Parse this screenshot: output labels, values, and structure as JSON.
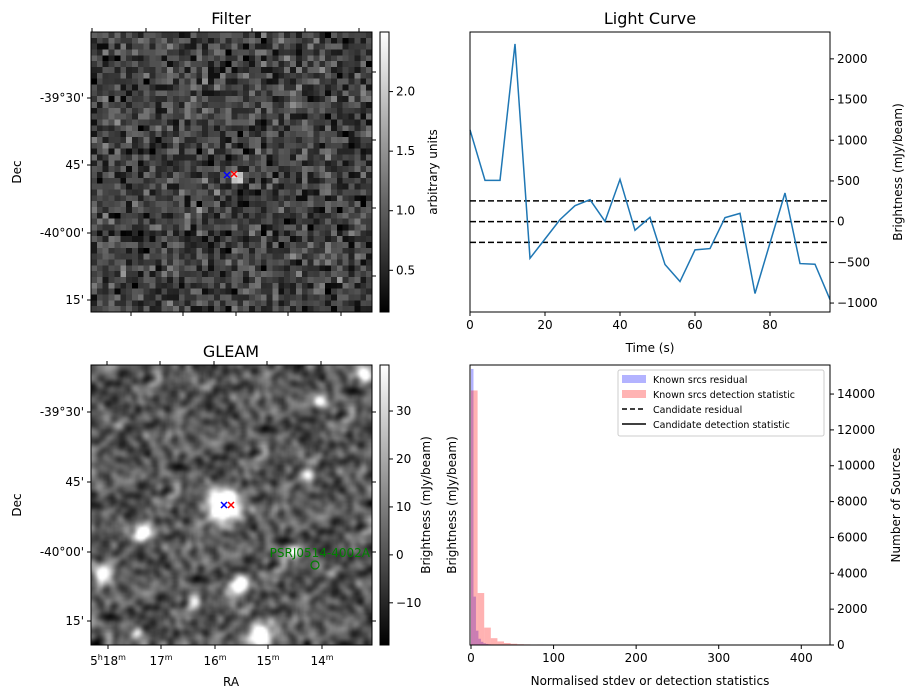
{
  "chart_data": [
    {
      "type": "heatmap",
      "title": "Filter",
      "xlabel": "",
      "ylabel": "Dec",
      "ytick_labels": [
        "-39°30'",
        "45'",
        "-40°00'",
        "15'"
      ],
      "colorbar": {
        "label": "arbitrary units",
        "ticks": [
          0.5,
          1.0,
          1.5,
          2.0
        ],
        "tick_labels": [
          "0.5",
          "1.0",
          "1.5",
          "2.0"
        ],
        "range": [
          0.15,
          2.5
        ]
      },
      "markers": [
        {
          "symbol": "x",
          "color": "#0000ff"
        },
        {
          "symbol": "x",
          "color": "#ff0000"
        }
      ]
    },
    {
      "type": "line",
      "title": "Light Curve",
      "xlabel": "Time (s)",
      "ylabel": "Brightness (mJy/beam)",
      "xlim": [
        0,
        96
      ],
      "ylim": [
        -1110,
        2330
      ],
      "xticks": [
        0,
        20,
        40,
        60,
        80
      ],
      "yticks": [
        -1000,
        -500,
        0,
        500,
        1000,
        1500,
        2000
      ],
      "x": [
        0,
        4,
        8,
        12,
        16,
        20,
        24,
        28,
        32,
        36,
        40,
        44,
        48,
        52,
        56,
        60,
        64,
        68,
        72,
        76,
        80,
        84,
        88,
        92,
        96
      ],
      "y": [
        1128,
        507,
        507,
        2183,
        -450,
        -213,
        25,
        196,
        270,
        4,
        519,
        -106,
        53,
        -527,
        -736,
        -347,
        -331,
        49,
        102,
        -883,
        -262,
        352,
        -515,
        -523,
        -957
      ],
      "series_color": "#1f77b4",
      "hlines": [
        255,
        0,
        -255
      ]
    },
    {
      "type": "heatmap",
      "title": "GLEAM",
      "xlabel": "RA",
      "ylabel": "Dec",
      "xtick_labels": [
        {
          "h": "5",
          "hs": "h",
          "m": "18",
          "ms": "m"
        },
        {
          "h": "",
          "hs": "",
          "m": "17",
          "ms": "m"
        },
        {
          "h": "",
          "hs": "",
          "m": "16",
          "ms": "m"
        },
        {
          "h": "",
          "hs": "",
          "m": "15",
          "ms": "m"
        },
        {
          "h": "",
          "hs": "",
          "m": "14",
          "ms": "m"
        }
      ],
      "ytick_labels": [
        "-39°30'",
        "45'",
        "-40°00'",
        "15'"
      ],
      "colorbar": {
        "label": "Brightness (mJy/beam)",
        "ticks": [
          -10,
          0,
          10,
          20,
          30
        ],
        "tick_labels": [
          "−10",
          "0",
          "10",
          "20",
          "30"
        ],
        "range": [
          -18.8,
          39.6
        ]
      },
      "annotation": {
        "text": "PSRJ0514-4002A",
        "color": "#008000"
      },
      "markers": [
        {
          "symbol": "x",
          "color": "#0000ff"
        },
        {
          "symbol": "x",
          "color": "#ff0000"
        }
      ]
    },
    {
      "type": "bar",
      "title": "",
      "xlabel": "Normalised stdev or detection statistics",
      "ylabel": "Brightness (mJy/beam)",
      "ylabel_right": "Number of Sources",
      "xlim": [
        0,
        436
      ],
      "ylim": [
        0,
        15620
      ],
      "xticks": [
        0,
        100,
        200,
        300,
        400
      ],
      "yticks": [
        0,
        2000,
        4000,
        6000,
        8000,
        10000,
        12000,
        14000
      ],
      "legend": {
        "placement": "top-right",
        "entries": [
          {
            "label": "Known srcs residual",
            "style": "patch",
            "color": "#b3b3ff"
          },
          {
            "label": "Known srcs detection statistic",
            "style": "patch",
            "color": "#ffb3b3"
          },
          {
            "label": "Candidate residual",
            "style": "dashed",
            "color": "#000000"
          },
          {
            "label": "Candidate detection statistic",
            "style": "solid",
            "color": "#000000"
          }
        ]
      },
      "series": [
        {
          "name": "Known srcs residual",
          "bin_width": 3,
          "values": [
            15400,
            2700,
            800,
            350,
            180,
            100,
            60,
            40,
            30,
            20,
            15,
            10,
            10,
            8,
            6,
            5,
            5,
            4,
            4,
            3
          ]
        },
        {
          "name": "Known srcs detection statistic",
          "bin_width": 8,
          "values": [
            14200,
            2900,
            970,
            380,
            200,
            110,
            70,
            45,
            35,
            25,
            30,
            20,
            18,
            15,
            15,
            12,
            10,
            10,
            10,
            10,
            12,
            0,
            0,
            0,
            0,
            0,
            0,
            0,
            0,
            8,
            8,
            0,
            0,
            0,
            0,
            0,
            0,
            0,
            0,
            0,
            0,
            0,
            0,
            0,
            0,
            0,
            0,
            0,
            0,
            0,
            0,
            6
          ]
        }
      ]
    }
  ]
}
